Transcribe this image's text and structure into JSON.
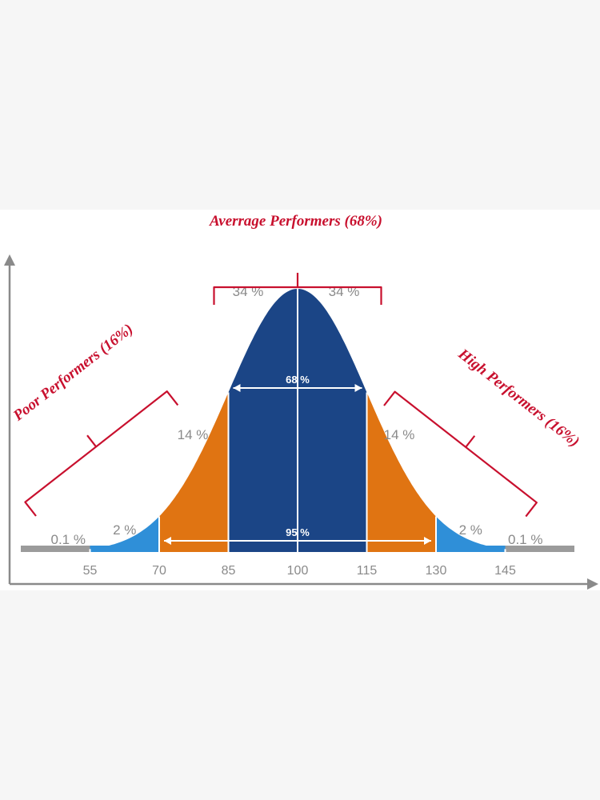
{
  "chart_data": {
    "type": "area",
    "title": "",
    "xlabel": "",
    "ylabel": "",
    "x_ticks": [
      "55",
      "70",
      "85",
      "100",
      "115",
      "130",
      "145"
    ],
    "mean": 100,
    "sd": 15,
    "segments": [
      {
        "label": "0.1 %",
        "from": 40,
        "to": 55,
        "color": "#9b9b9b"
      },
      {
        "label": "2 %",
        "from": 55,
        "to": 70,
        "color": "#2f8fd8"
      },
      {
        "label": "14 %",
        "from": 70,
        "to": 85,
        "color": "#e07412"
      },
      {
        "label": "34 %",
        "from": 85,
        "to": 100,
        "color": "#1b4586"
      },
      {
        "label": "34 %",
        "from": 100,
        "to": 115,
        "color": "#1b4586"
      },
      {
        "label": "14 %",
        "from": 115,
        "to": 130,
        "color": "#e07412"
      },
      {
        "label": "2 %",
        "from": 130,
        "to": 145,
        "color": "#2f8fd8"
      },
      {
        "label": "0.1 %",
        "from": 145,
        "to": 160,
        "color": "#9b9b9b"
      }
    ],
    "spans": [
      {
        "label": "68 %",
        "from": 85,
        "to": 115
      },
      {
        "label": "95 %",
        "from": 70,
        "to": 130
      }
    ],
    "groups": [
      {
        "label": "Poor Performers (16%)",
        "from": 40,
        "to": 85
      },
      {
        "label": "Averrage Performers (68%)",
        "from": 85,
        "to": 115
      },
      {
        "label": "High Performers (16%)",
        "from": 115,
        "to": 160
      }
    ],
    "colors": {
      "axis": "#8a8a8a",
      "bracket": "#c8102e",
      "divider": "#ffffff"
    }
  }
}
